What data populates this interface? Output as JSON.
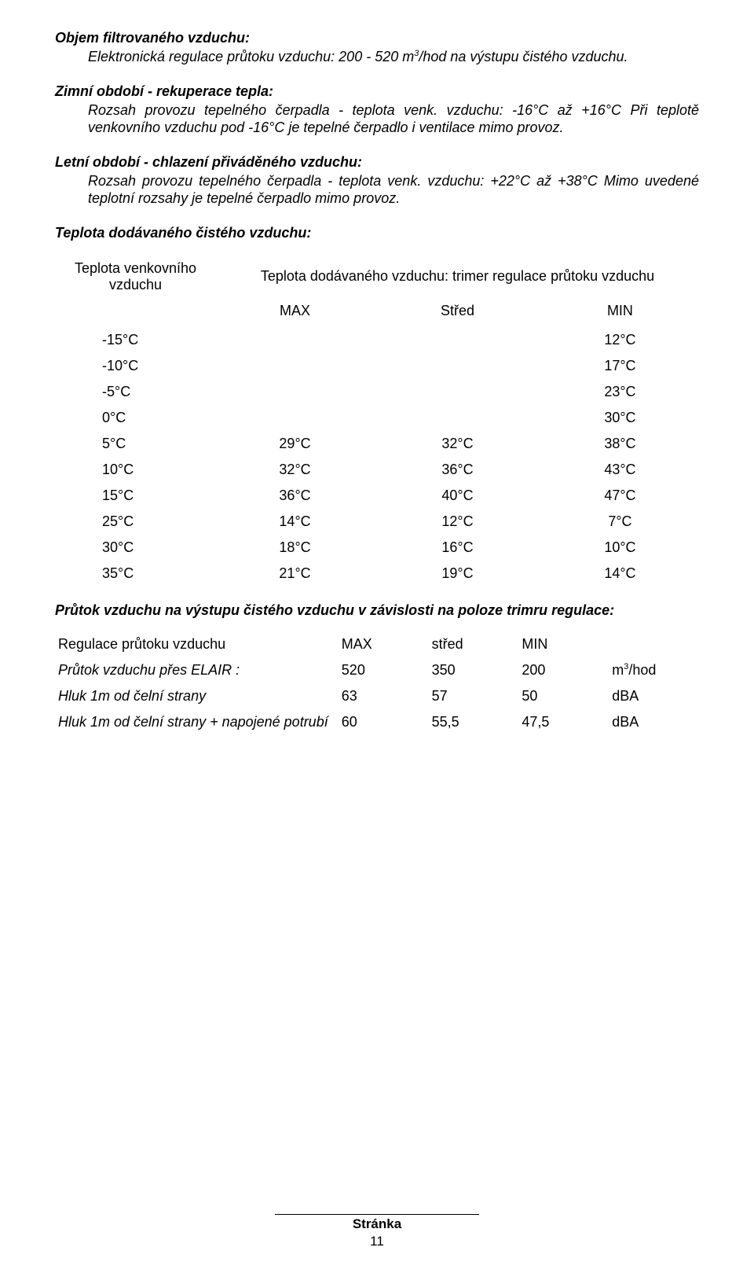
{
  "section1": {
    "heading": "Objem filtrovaného vzduchu:",
    "line1_prefix": "Elektronická regulace průtoku vzduchu: 200 - 520 m",
    "line1_sup": "3",
    "line1_suffix": "/hod na výstupu čistého vzduchu."
  },
  "section2": {
    "heading": "Zimní období - rekuperace tepla:",
    "line1": "Rozsah provozu tepelného čerpadla - teplota venk. vzduchu: -16°C  až +16°C",
    "line2": "Při teplotě venkovního vzduchu pod -16°C je tepelné čerpadlo i ventilace mimo provoz."
  },
  "section3": {
    "heading": "Letní období - chlazení přiváděného vzduchu:",
    "line1": "Rozsah provozu tepelného čerpadla - teplota venk. vzduchu: +22°C až +38°C",
    "line2": "Mimo uvedené teplotní rozsahy je tepelné čerpadlo mimo provoz."
  },
  "section4": {
    "heading": "Teplota dodávaného čistého vzduchu:"
  },
  "tempTable": {
    "outdoorHeader": "Teplota venkovního vzduchu",
    "deliveredHeader": "Teplota dodávaného vzduchu: trimer regulace průtoku vzduchu",
    "col_max": "MAX",
    "col_mid": "Střed",
    "col_min": "MIN",
    "rows": [
      {
        "t": "-15°C",
        "max": "",
        "mid": "",
        "min": "12°C"
      },
      {
        "t": "-10°C",
        "max": "",
        "mid": "",
        "min": "17°C"
      },
      {
        "t": "-5°C",
        "max": "",
        "mid": "",
        "min": "23°C"
      },
      {
        "t": "0°C",
        "max": "",
        "mid": "",
        "min": "30°C"
      },
      {
        "t": "5°C",
        "max": "29°C",
        "mid": "32°C",
        "min": "38°C"
      },
      {
        "t": "10°C",
        "max": "32°C",
        "mid": "36°C",
        "min": "43°C"
      },
      {
        "t": "15°C",
        "max": "36°C",
        "mid": "40°C",
        "min": "47°C"
      },
      {
        "t": "25°C",
        "max": "14°C",
        "mid": "12°C",
        "min": "7°C"
      },
      {
        "t": "30°C",
        "max": "18°C",
        "mid": "16°C",
        "min": "10°C"
      },
      {
        "t": "35°C",
        "max": "21°C",
        "mid": "19°C",
        "min": "14°C"
      }
    ]
  },
  "section5": {
    "heading": "Průtok vzduchu na výstupu čistého vzduchu v závislosti na poloze trimru regulace:"
  },
  "flowTable": {
    "header": {
      "label": "Regulace průtoku vzduchu",
      "max": "MAX",
      "mid": "střed",
      "min": "MIN",
      "unit": ""
    },
    "rows": [
      {
        "label": "Průtok vzduchu přes ELAIR :",
        "max": "520",
        "mid": "350",
        "min": "200",
        "unit_pre": "m",
        "unit_sup": "3",
        "unit_suf": "/hod",
        "italic": true
      },
      {
        "label": "Hluk 1m od čelní strany",
        "max": "63",
        "mid": "57",
        "min": "50",
        "unit": "dBA",
        "italic": true
      },
      {
        "label": "Hluk 1m od čelní strany + napojené potrubí",
        "max": "60",
        "mid": "55,5",
        "min": "47,5",
        "unit": "dBA",
        "italic": true
      }
    ]
  },
  "footer": {
    "label": "Stránka",
    "page": "11"
  }
}
